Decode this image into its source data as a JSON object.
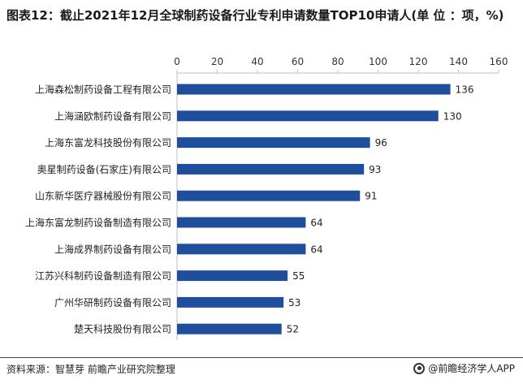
{
  "title": "图表12：截止2021年12月全球制药设备行业专利申请数量TOP10申请人(单 位 ：项，%)",
  "chart_data": {
    "type": "bar",
    "orientation": "horizontal",
    "categories": [
      "上海森松制药设备工程有限公司",
      "上海涵欧制药设备有限公司",
      "上海东富龙科技股份有限公司",
      "奥星制药设备(石家庄)有限公司",
      "山东新华医疗器械股份有限公司",
      "上海东富龙制药设备制造有限公司",
      "上海成界制药设备有限公司",
      "江苏兴科制药设备制造有限公司",
      "广州华研制药设备有限公司",
      "楚天科技股份有限公司"
    ],
    "values": [
      136,
      130,
      96,
      93,
      91,
      64,
      64,
      55,
      53,
      52
    ],
    "xlim": [
      0,
      160
    ],
    "xticks": [
      0,
      20,
      40,
      60,
      80,
      100,
      120,
      140,
      160
    ],
    "bar_color": "#1f4e9c",
    "axis_position": "top",
    "grid": false
  },
  "footer": {
    "source": "资料来源：智慧芽 前瞻产业研究院整理",
    "logo_text": "@前瞻经济学人APP"
  }
}
